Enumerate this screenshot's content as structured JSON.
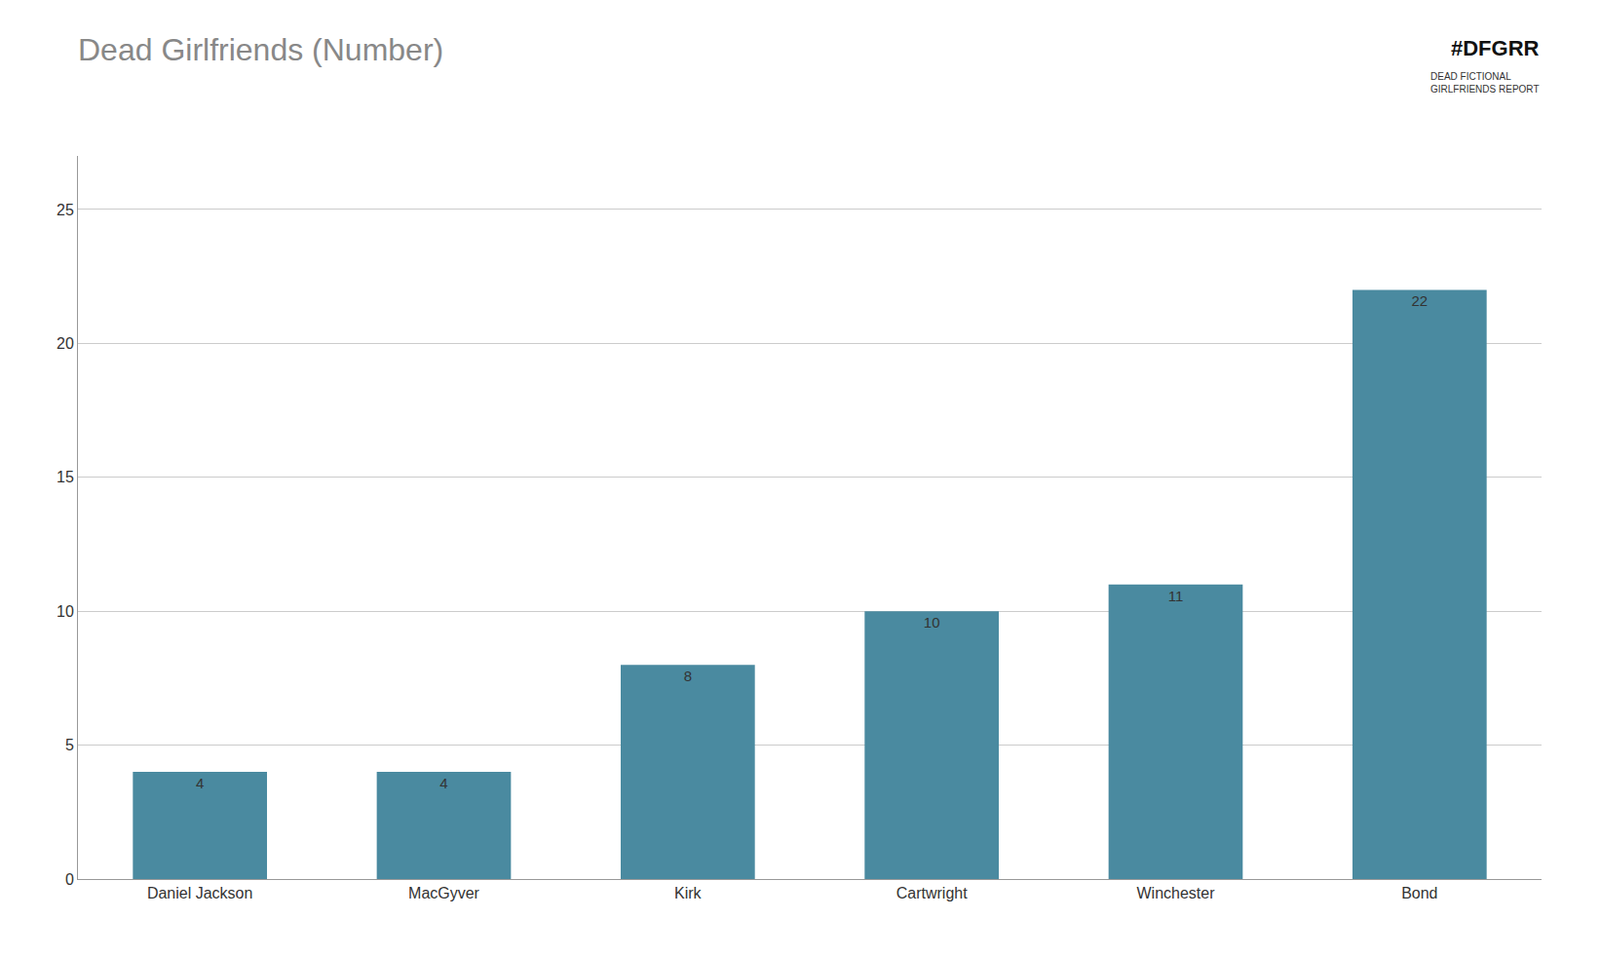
{
  "chart_data": {
    "type": "bar",
    "title": "Dead Girlfriends (Number)",
    "categories": [
      "Daniel Jackson",
      "MacGyver",
      "Kirk",
      "Cartwright",
      "Winchester",
      "Bond"
    ],
    "values": [
      4,
      4,
      8,
      10,
      11,
      22
    ],
    "color": "#4a8aa0",
    "ylim": [
      0,
      27
    ],
    "yticks": [
      0,
      5,
      10,
      15,
      20,
      25
    ],
    "grid": true,
    "data_labels": true,
    "annotations": [
      "#DFGRR",
      "DEAD FICTIONAL\nGIRLFRIENDS REPORT"
    ]
  }
}
